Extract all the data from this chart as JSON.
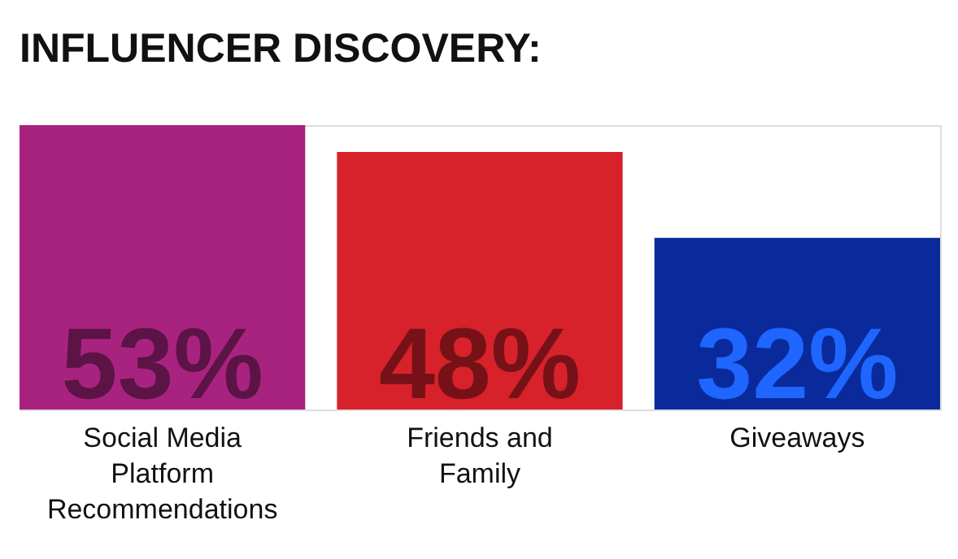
{
  "chart_data": {
    "type": "bar",
    "title": "INFLUENCER DISCOVERY:",
    "categories": [
      "Social Media Platform Recommendations",
      "Friends and Family",
      "Giveaways"
    ],
    "values": [
      53,
      48,
      32
    ],
    "colors": [
      "#a8237f",
      "#d7212b",
      "#0a2a9b"
    ],
    "value_labels": [
      "53%",
      "48%",
      "32%"
    ]
  }
}
